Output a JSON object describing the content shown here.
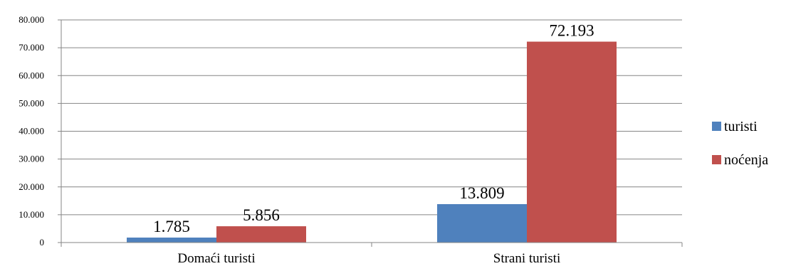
{
  "chart_data": {
    "type": "bar",
    "categories": [
      "Domaći turisti",
      "Strani turisti"
    ],
    "series": [
      {
        "name": "turisti",
        "color": "#4f81bd",
        "values": [
          1785,
          13809
        ],
        "labels": [
          "1.785",
          "13.809"
        ]
      },
      {
        "name": "noćenja",
        "color": "#c0504d",
        "values": [
          5856,
          72193
        ],
        "labels": [
          "5.856",
          "72.193"
        ]
      }
    ],
    "ylim": [
      0,
      80000
    ],
    "yticks": [
      0,
      10000,
      20000,
      30000,
      40000,
      50000,
      60000,
      70000,
      80000
    ],
    "ytick_labels": [
      "0",
      "10.000",
      "20.000",
      "30.000",
      "40.000",
      "50.000",
      "60.000",
      "70.000",
      "80.000"
    ],
    "grid": true,
    "legend_position": "right"
  }
}
